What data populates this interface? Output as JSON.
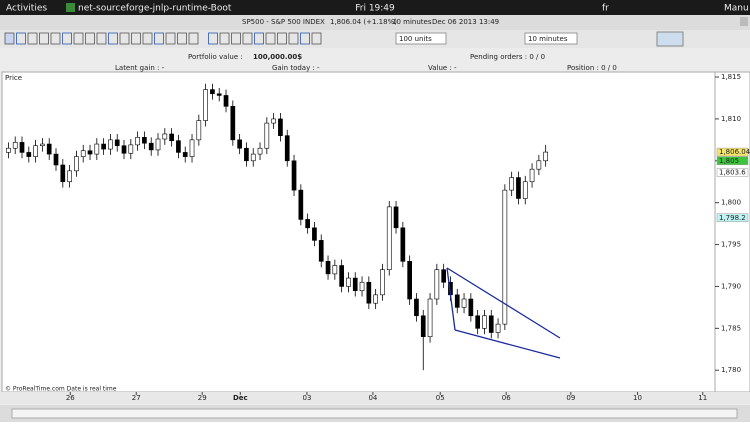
{
  "topbar": {
    "activities": "Activities",
    "app": "net-sourceforge-jnlp-runtime-Boot",
    "clock": "Fri 19:49",
    "lang": "fr",
    "user": "Manu"
  },
  "window": {
    "instrument": "SP500 - S&P 500 INDEX",
    "quote": "1,806.04 (+1.18%)",
    "period": "10 minutes",
    "timestamp": "Dec 06 2013 13:49"
  },
  "toolbar": {
    "units": "100 units",
    "interval": "10 minutes"
  },
  "portfolio": {
    "portfolio_value_label": "Portfolio value :",
    "portfolio_value": "100,000.00$",
    "pending_orders": "Pending orders : 0 / 0",
    "latent_gain": "Latent gain : -",
    "gain_today": "Gain today : -",
    "value": "Value : -",
    "position": "Position : 0 / 0"
  },
  "chart_data": {
    "type": "candlestick",
    "panel_label": "Price",
    "footer": "© ProRealTime.com  Date is real time",
    "up_color": "#ffffff",
    "down_color": "#000000",
    "xlim": [
      0,
      104.4
    ],
    "xticks": [
      {
        "value": 9.6,
        "label": "26"
      },
      {
        "value": 19.3,
        "label": "27"
      },
      {
        "value": 29,
        "label": "29"
      },
      {
        "value": 34.6,
        "label": "Dec"
      },
      {
        "value": 44.4,
        "label": "03"
      },
      {
        "value": 54.1,
        "label": "04"
      },
      {
        "value": 64,
        "label": "05"
      },
      {
        "value": 73.7,
        "label": "06"
      },
      {
        "value": 83.2,
        "label": "09"
      },
      {
        "value": 93,
        "label": "10"
      },
      {
        "value": 102.6,
        "label": "11"
      }
    ],
    "ylim": [
      1777.4,
      1815.6
    ],
    "yticks": [
      {
        "value": 1780,
        "label": "1,780"
      },
      {
        "value": 1785,
        "label": "1,785"
      },
      {
        "value": 1790,
        "label": "1,790"
      },
      {
        "value": 1795,
        "label": "1,795"
      },
      {
        "value": 1800,
        "label": "1,800"
      },
      {
        "value": 1805,
        "label": "1,805"
      },
      {
        "value": 1810,
        "label": "1,810"
      },
      {
        "value": 1815,
        "label": "1,815"
      }
    ],
    "price_tags": [
      {
        "value": 1806.04,
        "label": "1,806.04",
        "color": "#f5e66a"
      },
      {
        "value": 1805,
        "label": "1,805",
        "color": "#3cc43c"
      },
      {
        "value": 1803.6,
        "label": "1,803.6",
        "color": "#ffffff"
      },
      {
        "value": 1798.2,
        "label": "1,798.2",
        "color": "#bff4f4"
      }
    ],
    "open": [
      1806.0,
      1806.5,
      1807.2,
      1806.0,
      1805.5,
      1806.8,
      1807.0,
      1805.8,
      1804.5,
      1802.5,
      1803.8,
      1805.5,
      1806.2,
      1805.8,
      1807.0,
      1806.4,
      1807.5,
      1806.8,
      1805.9,
      1806.9,
      1807.8,
      1807.1,
      1806.3,
      1807.6,
      1808.2,
      1807.4,
      1806.0,
      1805.5,
      1807.5,
      1809.8,
      1813.5,
      1813.0,
      1812.8,
      1811.5,
      1807.5,
      1806.5,
      1805.0,
      1805.8,
      1806.5,
      1809.5,
      1810.0,
      1808.0,
      1805.0,
      1801.5,
      1798.0,
      1797.0,
      1795.5,
      1793.0,
      1791.5,
      1792.5,
      1790.0,
      1791.0,
      1789.5,
      1790.5,
      1788.0,
      1789.0,
      1792.0,
      1799.5,
      1797.0,
      1793.0,
      1788.5,
      1786.5,
      1784.0,
      1788.5,
      1792.0,
      1790.5,
      1789.0,
      1787.5,
      1788.5,
      1786.5,
      1785.0,
      1786.5,
      1784.5,
      1785.5,
      1801.5,
      1803.0,
      1800.5,
      1802.5,
      1804.0,
      1805.0
    ],
    "high": [
      1807.2,
      1807.9,
      1807.9,
      1806.7,
      1807.5,
      1807.7,
      1807.7,
      1806.5,
      1805.2,
      1804.5,
      1806.2,
      1806.9,
      1806.9,
      1807.7,
      1807.7,
      1808.2,
      1808.2,
      1807.5,
      1807.6,
      1808.5,
      1808.5,
      1807.8,
      1808.3,
      1808.9,
      1808.9,
      1808.1,
      1806.7,
      1808.2,
      1810.5,
      1814.2,
      1814.2,
      1813.7,
      1813.5,
      1812.2,
      1808.2,
      1807.2,
      1806.5,
      1807.2,
      1810.2,
      1810.7,
      1810.7,
      1808.7,
      1805.7,
      1802.2,
      1798.7,
      1797.7,
      1796.2,
      1793.7,
      1793.2,
      1793.2,
      1791.7,
      1791.7,
      1791.2,
      1791.2,
      1789.7,
      1792.7,
      1800.2,
      1800.2,
      1797.7,
      1793.7,
      1789.2,
      1787.2,
      1789.2,
      1792.7,
      1792.7,
      1791.2,
      1789.7,
      1789.2,
      1789.2,
      1787.2,
      1787.2,
      1787.2,
      1786.2,
      1802.2,
      1803.7,
      1803.7,
      1803.2,
      1804.7,
      1805.7,
      1806.9
    ],
    "low": [
      1805.3,
      1805.8,
      1805.3,
      1804.8,
      1804.8,
      1806.1,
      1805.1,
      1803.8,
      1801.8,
      1801.8,
      1803.1,
      1804.8,
      1805.1,
      1805.1,
      1805.7,
      1805.7,
      1806.1,
      1805.2,
      1805.2,
      1806.2,
      1806.4,
      1805.6,
      1805.6,
      1806.9,
      1806.7,
      1805.3,
      1804.8,
      1804.8,
      1806.8,
      1809.1,
      1812.3,
      1812.1,
      1810.8,
      1806.8,
      1805.8,
      1804.3,
      1804.3,
      1805.1,
      1805.8,
      1808.8,
      1807.3,
      1804.3,
      1800.8,
      1797.3,
      1796.3,
      1794.8,
      1792.3,
      1790.8,
      1790.8,
      1789.3,
      1789.3,
      1788.8,
      1788.8,
      1787.3,
      1787.3,
      1788.3,
      1791.3,
      1796.3,
      1792.3,
      1787.8,
      1785.8,
      1780.0,
      1783.3,
      1787.8,
      1789.8,
      1788.3,
      1786.8,
      1786.8,
      1785.8,
      1784.3,
      1784.3,
      1783.8,
      1783.8,
      1784.8,
      1800.8,
      1799.8,
      1799.8,
      1801.8,
      1803.3,
      1804.3
    ],
    "close": [
      1806.5,
      1807.2,
      1806.0,
      1805.5,
      1806.8,
      1807.0,
      1805.8,
      1804.5,
      1802.5,
      1803.8,
      1805.5,
      1806.2,
      1805.8,
      1807.0,
      1806.4,
      1807.5,
      1806.8,
      1805.9,
      1806.9,
      1807.8,
      1807.1,
      1806.3,
      1807.6,
      1808.2,
      1807.4,
      1806.0,
      1805.5,
      1807.5,
      1809.8,
      1813.5,
      1813.0,
      1812.8,
      1811.5,
      1807.5,
      1806.5,
      1805.0,
      1805.8,
      1806.5,
      1809.5,
      1810.0,
      1808.0,
      1805.0,
      1801.5,
      1798.0,
      1797.0,
      1795.5,
      1793.0,
      1791.5,
      1792.5,
      1790.0,
      1791.0,
      1789.5,
      1790.5,
      1788.0,
      1789.0,
      1792.0,
      1799.5,
      1797.0,
      1793.0,
      1788.5,
      1786.5,
      1784.0,
      1788.5,
      1792.0,
      1790.5,
      1789.0,
      1787.5,
      1788.5,
      1786.5,
      1785.0,
      1786.5,
      1784.5,
      1785.5,
      1801.5,
      1803.0,
      1800.5,
      1802.5,
      1804.0,
      1805.0,
      1806.04
    ]
  }
}
